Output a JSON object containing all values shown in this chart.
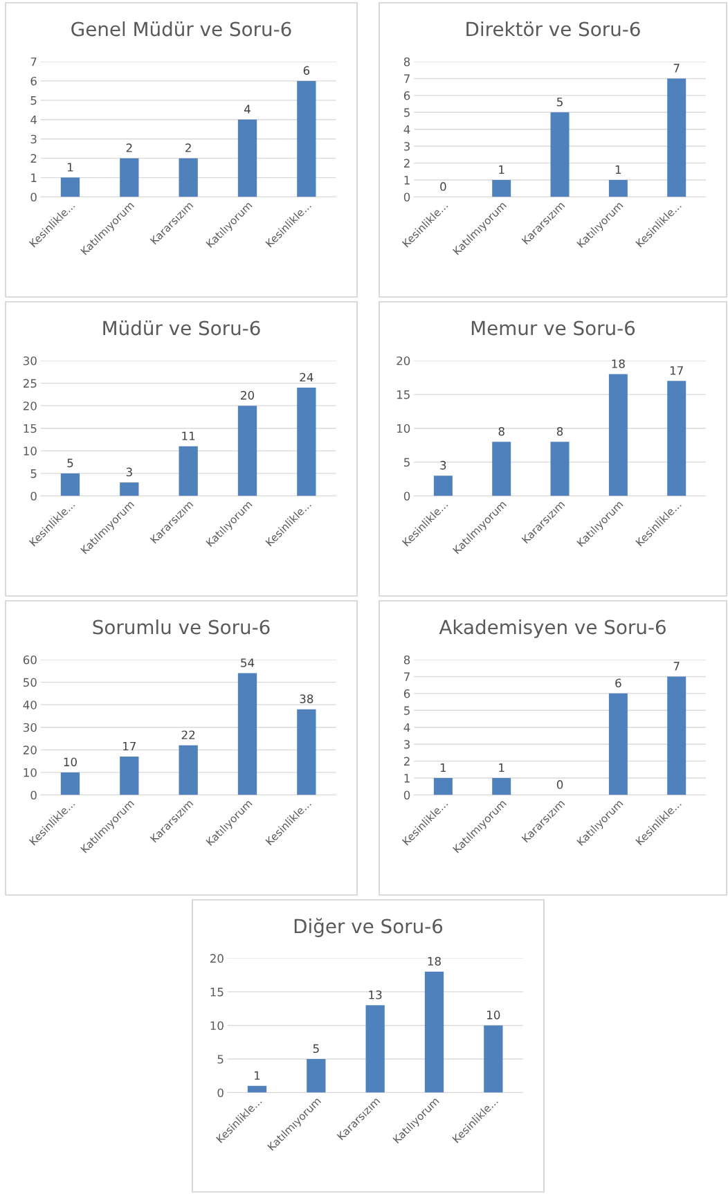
{
  "chart_data": [
    {
      "type": "bar",
      "title": "Genel Müdür ve Soru-6",
      "categories": [
        "Kesinlikle...",
        "Katılmıyorum",
        "Kararsızım",
        "Katılıyorum",
        "Kesinlikle..."
      ],
      "values": [
        1,
        2,
        2,
        4,
        6
      ],
      "color": "#4f81bd",
      "ylim": [
        0,
        7
      ],
      "yticks": [
        0,
        1,
        2,
        3,
        4,
        5,
        6,
        7
      ],
      "grid": "y",
      "data_labels": true
    },
    {
      "type": "bar",
      "title": "Direktör ve Soru-6",
      "categories": [
        "Kesinlikle...",
        "Katılmıyorum",
        "Kararsızım",
        "Katılıyorum",
        "Kesinlikle..."
      ],
      "values": [
        0,
        1,
        5,
        1,
        7
      ],
      "color": "#4f81bd",
      "ylim": [
        0,
        8
      ],
      "yticks": [
        0,
        1,
        2,
        3,
        4,
        5,
        6,
        7,
        8
      ],
      "grid": "y",
      "data_labels": true
    },
    {
      "type": "bar",
      "title": "Müdür ve Soru-6",
      "categories": [
        "Kesinlikle...",
        "Katılmıyorum",
        "Kararsızım",
        "Katılıyorum",
        "Kesinlikle..."
      ],
      "values": [
        5,
        3,
        11,
        20,
        24
      ],
      "color": "#4f81bd",
      "ylim": [
        0,
        30
      ],
      "yticks": [
        0,
        5,
        10,
        15,
        20,
        25,
        30
      ],
      "grid": "y",
      "data_labels": true
    },
    {
      "type": "bar",
      "title": "Memur ve Soru-6",
      "categories": [
        "Kesinlikle...",
        "Katılmıyorum",
        "Kararsızım",
        "Katılıyorum",
        "Kesinlikle..."
      ],
      "values": [
        3,
        8,
        8,
        18,
        17
      ],
      "color": "#4f81bd",
      "ylim": [
        0,
        20
      ],
      "yticks": [
        0,
        5,
        10,
        15,
        20
      ],
      "grid": "y",
      "data_labels": true
    },
    {
      "type": "bar",
      "title": "Sorumlu ve Soru-6",
      "categories": [
        "Kesinlikle...",
        "Katılmıyorum",
        "Kararsızım",
        "Katılıyorum",
        "Kesinlikle..."
      ],
      "values": [
        10,
        17,
        22,
        54,
        38
      ],
      "color": "#4f81bd",
      "ylim": [
        0,
        60
      ],
      "yticks": [
        0,
        10,
        20,
        30,
        40,
        50,
        60
      ],
      "grid": "y",
      "data_labels": true
    },
    {
      "type": "bar",
      "title": "Akademisyen ve Soru-6",
      "categories": [
        "Kesinlikle...",
        "Katılmıyorum",
        "Kararsızım",
        "Katılıyorum",
        "Kesinlikle..."
      ],
      "values": [
        1,
        1,
        0,
        6,
        7
      ],
      "color": "#4f81bd",
      "ylim": [
        0,
        8
      ],
      "yticks": [
        0,
        1,
        2,
        3,
        4,
        5,
        6,
        7,
        8
      ],
      "grid": "y",
      "data_labels": true
    },
    {
      "type": "bar",
      "title": "Diğer ve Soru-6",
      "categories": [
        "Kesinlikle...",
        "Katılmıyorum",
        "Kararsızım",
        "Katılıyorum",
        "Kesinlikle..."
      ],
      "values": [
        1,
        5,
        13,
        18,
        10
      ],
      "color": "#4f81bd",
      "ylim": [
        0,
        20
      ],
      "yticks": [
        0,
        5,
        10,
        15,
        20
      ],
      "grid": "y",
      "data_labels": true
    }
  ]
}
